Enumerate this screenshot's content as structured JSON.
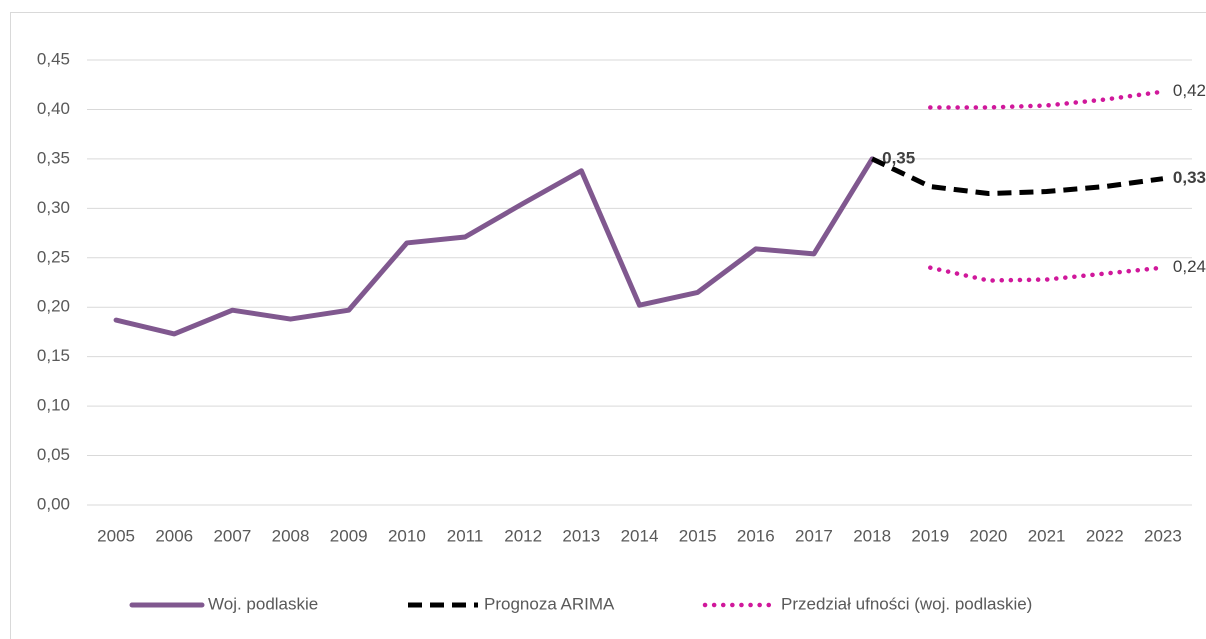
{
  "chart_data": {
    "type": "line",
    "categories": [
      "2005",
      "2006",
      "2007",
      "2008",
      "2009",
      "2010",
      "2011",
      "2012",
      "2013",
      "2014",
      "2015",
      "2016",
      "2017",
      "2018",
      "2019",
      "2020",
      "2021",
      "2022",
      "2023"
    ],
    "series": [
      {
        "name": "Woj. podlaskie",
        "color": "#80588f",
        "style": "solid",
        "values": [
          0.187,
          0.173,
          0.197,
          0.188,
          0.197,
          0.265,
          0.271,
          0.305,
          0.338,
          0.202,
          0.215,
          0.259,
          0.254,
          0.35,
          null,
          null,
          null,
          null,
          null
        ],
        "value_labels": [
          null,
          null,
          null,
          null,
          null,
          null,
          null,
          null,
          null,
          null,
          null,
          null,
          null,
          "0,35",
          null,
          null,
          null,
          null,
          null
        ]
      },
      {
        "name": "Prognoza ARIMA",
        "color": "#000000",
        "style": "dashed",
        "values": [
          null,
          null,
          null,
          null,
          null,
          null,
          null,
          null,
          null,
          null,
          null,
          null,
          null,
          0.35,
          0.322,
          0.315,
          0.317,
          0.322,
          0.33
        ],
        "value_labels": [
          null,
          null,
          null,
          null,
          null,
          null,
          null,
          null,
          null,
          null,
          null,
          null,
          null,
          null,
          null,
          null,
          null,
          null,
          "0,33"
        ]
      },
      {
        "name": "Przedział ufności (woj. podlaskie)",
        "color": "#d0189b",
        "style": "dotted",
        "upper": [
          null,
          null,
          null,
          null,
          null,
          null,
          null,
          null,
          null,
          null,
          null,
          null,
          null,
          null,
          0.402,
          0.402,
          0.404,
          0.41,
          0.418
        ],
        "upper_labels": [
          null,
          null,
          null,
          null,
          null,
          null,
          null,
          null,
          null,
          null,
          null,
          null,
          null,
          null,
          null,
          null,
          null,
          null,
          "0,42"
        ],
        "lower": [
          null,
          null,
          null,
          null,
          null,
          null,
          null,
          null,
          null,
          null,
          null,
          null,
          null,
          null,
          0.24,
          0.227,
          0.228,
          0.234,
          0.24
        ],
        "lower_labels": [
          null,
          null,
          null,
          null,
          null,
          null,
          null,
          null,
          null,
          null,
          null,
          null,
          null,
          null,
          null,
          null,
          null,
          null,
          "0,24"
        ]
      }
    ],
    "ylim": [
      0,
      0.45
    ],
    "yticks": [
      {
        "value": 0,
        "label": "0,00"
      },
      {
        "value": 0.05,
        "label": "0,05"
      },
      {
        "value": 0.1,
        "label": "0,10"
      },
      {
        "value": 0.15,
        "label": "0,15"
      },
      {
        "value": 0.2,
        "label": "0,20"
      },
      {
        "value": 0.25,
        "label": "0,25"
      },
      {
        "value": 0.3,
        "label": "0,30"
      },
      {
        "value": 0.35,
        "label": "0,35"
      },
      {
        "value": 0.4,
        "label": "0,40"
      },
      {
        "value": 0.45,
        "label": "0,45"
      }
    ],
    "grid": true,
    "legend": "bottom"
  }
}
